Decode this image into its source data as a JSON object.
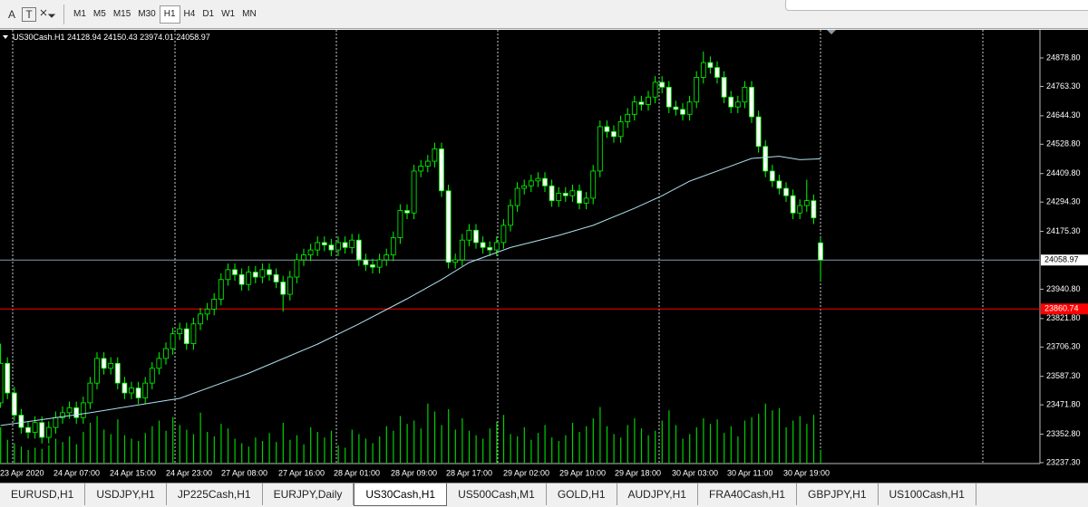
{
  "toolbar": {
    "tools": [
      "A",
      "T"
    ],
    "timeframes": [
      "M1",
      "M5",
      "M15",
      "M30",
      "H1",
      "H4",
      "D1",
      "W1",
      "MN"
    ],
    "active": 4
  },
  "chart_data": {
    "type": "candlestick",
    "title": "US30Cash.H1",
    "x_labels": [
      "23 Apr 2020",
      "24 Apr 07:00",
      "24 Apr 15:00",
      "24 Apr 23:00",
      "27 Apr 08:00",
      "27 Apr 16:00",
      "28 Apr 01:00",
      "28 Apr 09:00",
      "28 Apr 17:00",
      "29 Apr 02:00",
      "29 Apr 10:00",
      "29 Apr 18:00",
      "30 Apr 03:00",
      "30 Apr 11:00",
      "30 Apr 19:00"
    ],
    "ohlc": [
      [
        23480,
        23720,
        23460,
        23640
      ],
      [
        23640,
        23665,
        23495,
        23520
      ],
      [
        23520,
        23545,
        23405,
        23430
      ],
      [
        23430,
        23455,
        23355,
        23380
      ],
      [
        23380,
        23405,
        23335,
        23360
      ],
      [
        23360,
        23425,
        23335,
        23400
      ],
      [
        23400,
        23425,
        23315,
        23340
      ],
      [
        23340,
        23405,
        23315,
        23380
      ],
      [
        23380,
        23445,
        23355,
        23420
      ],
      [
        23420,
        23465,
        23395,
        23440
      ],
      [
        23440,
        23485,
        23415,
        23460
      ],
      [
        23460,
        23485,
        23395,
        23420
      ],
      [
        23420,
        23505,
        23395,
        23480
      ],
      [
        23480,
        23585,
        23455,
        23560
      ],
      [
        23560,
        23685,
        23535,
        23660
      ],
      [
        23660,
        23685,
        23595,
        23620
      ],
      [
        23620,
        23665,
        23595,
        23640
      ],
      [
        23640,
        23665,
        23535,
        23560
      ],
      [
        23560,
        23585,
        23495,
        23520
      ],
      [
        23520,
        23565,
        23495,
        23540
      ],
      [
        23540,
        23565,
        23475,
        23500
      ],
      [
        23500,
        23585,
        23475,
        23560
      ],
      [
        23560,
        23645,
        23535,
        23620
      ],
      [
        23620,
        23685,
        23595,
        23660
      ],
      [
        23660,
        23725,
        23635,
        23700
      ],
      [
        23700,
        23785,
        23675,
        23760
      ],
      [
        23760,
        23805,
        23735,
        23780
      ],
      [
        23780,
        23805,
        23695,
        23720
      ],
      [
        23720,
        23825,
        23695,
        23800
      ],
      [
        23800,
        23865,
        23775,
        23840
      ],
      [
        23840,
        23885,
        23815,
        23860
      ],
      [
        23860,
        23925,
        23835,
        23900
      ],
      [
        23900,
        24005,
        23875,
        23980
      ],
      [
        23980,
        24045,
        23955,
        24020
      ],
      [
        24020,
        24045,
        23975,
        24000
      ],
      [
        24000,
        24025,
        23935,
        23960
      ],
      [
        23960,
        24035,
        23935,
        24010
      ],
      [
        24010,
        24035,
        23965,
        23990
      ],
      [
        23990,
        24045,
        23965,
        24020
      ],
      [
        24020,
        24045,
        23975,
        24000
      ],
      [
        24000,
        24025,
        23945,
        23970
      ],
      [
        23970,
        23995,
        23850,
        23920
      ],
      [
        23920,
        24015,
        23895,
        23990
      ],
      [
        23990,
        24085,
        23965,
        24060
      ],
      [
        24060,
        24105,
        24035,
        24080
      ],
      [
        24080,
        24125,
        24055,
        24100
      ],
      [
        24100,
        24155,
        24075,
        24130
      ],
      [
        24130,
        24155,
        24095,
        24120
      ],
      [
        24120,
        24145,
        24075,
        24100
      ],
      [
        24100,
        24155,
        24075,
        24130
      ],
      [
        24130,
        24155,
        24085,
        24110
      ],
      [
        24110,
        24165,
        24085,
        24140
      ],
      [
        24140,
        24165,
        24035,
        24060
      ],
      [
        24060,
        24085,
        24015,
        24040
      ],
      [
        24040,
        24065,
        24005,
        24030
      ],
      [
        24030,
        24085,
        24005,
        24060
      ],
      [
        24060,
        24105,
        24035,
        24080
      ],
      [
        24080,
        24175,
        24055,
        24150
      ],
      [
        24150,
        24285,
        24125,
        24260
      ],
      [
        24260,
        24285,
        24225,
        24250
      ],
      [
        24250,
        24445,
        24225,
        24420
      ],
      [
        24420,
        24465,
        24395,
        24440
      ],
      [
        24440,
        24485,
        24415,
        24460
      ],
      [
        24460,
        24535,
        24435,
        24510
      ],
      [
        24510,
        24535,
        24315,
        24340
      ],
      [
        24340,
        24365,
        24025,
        24050
      ],
      [
        24050,
        24085,
        24025,
        24060
      ],
      [
        24060,
        24165,
        24035,
        24140
      ],
      [
        24140,
        24205,
        24115,
        24180
      ],
      [
        24180,
        24205,
        24105,
        24130
      ],
      [
        24130,
        24155,
        24085,
        24110
      ],
      [
        24110,
        24135,
        24075,
        24100
      ],
      [
        24100,
        24155,
        24075,
        24130
      ],
      [
        24130,
        24225,
        24105,
        24200
      ],
      [
        24200,
        24305,
        24175,
        24280
      ],
      [
        24280,
        24375,
        24255,
        24350
      ],
      [
        24350,
        24385,
        24325,
        24360
      ],
      [
        24360,
        24405,
        24335,
        24380
      ],
      [
        24380,
        24415,
        24355,
        24390
      ],
      [
        24390,
        24415,
        24335,
        24360
      ],
      [
        24360,
        24385,
        24275,
        24300
      ],
      [
        24300,
        24355,
        24275,
        24330
      ],
      [
        24330,
        24355,
        24295,
        24320
      ],
      [
        24320,
        24365,
        24295,
        24340
      ],
      [
        24340,
        24365,
        24265,
        24290
      ],
      [
        24290,
        24335,
        24265,
        24310
      ],
      [
        24310,
        24445,
        24285,
        24420
      ],
      [
        24420,
        24625,
        24395,
        24600
      ],
      [
        24600,
        24625,
        24555,
        24580
      ],
      [
        24580,
        24605,
        24535,
        24560
      ],
      [
        24560,
        24645,
        24535,
        24620
      ],
      [
        24620,
        24675,
        24595,
        24650
      ],
      [
        24650,
        24725,
        24625,
        24700
      ],
      [
        24700,
        24725,
        24665,
        24690
      ],
      [
        24690,
        24745,
        24665,
        24720
      ],
      [
        24720,
        24805,
        24695,
        24780
      ],
      [
        24780,
        24805,
        24735,
        24760
      ],
      [
        24760,
        24785,
        24655,
        24680
      ],
      [
        24680,
        24705,
        24645,
        24670
      ],
      [
        24670,
        24695,
        24625,
        24650
      ],
      [
        24650,
        24725,
        24625,
        24700
      ],
      [
        24700,
        24825,
        24675,
        24800
      ],
      [
        24800,
        24905,
        24775,
        24860
      ],
      [
        24860,
        24885,
        24815,
        24840
      ],
      [
        24840,
        24865,
        24775,
        24800
      ],
      [
        24800,
        24825,
        24695,
        24720
      ],
      [
        24720,
        24745,
        24655,
        24680
      ],
      [
        24680,
        24725,
        24655,
        24700
      ],
      [
        24700,
        24785,
        24675,
        24760
      ],
      [
        24760,
        24785,
        24615,
        24640
      ],
      [
        24640,
        24665,
        24495,
        24520
      ],
      [
        24520,
        24545,
        24395,
        24420
      ],
      [
        24420,
        24445,
        24355,
        24380
      ],
      [
        24380,
        24405,
        24325,
        24350
      ],
      [
        24350,
        24375,
        24295,
        24320
      ],
      [
        24320,
        24345,
        24225,
        24250
      ],
      [
        24250,
        24305,
        24225,
        24280
      ],
      [
        24280,
        24385,
        24255,
        24300
      ],
      [
        24300,
        24325,
        24205,
        24230
      ],
      [
        24128.94,
        24150.43,
        23974.01,
        24058.97
      ]
    ],
    "volume": [
      3200,
      2100,
      1800,
      1500,
      1200,
      1400,
      1300,
      1600,
      2200,
      1900,
      2400,
      1700,
      2800,
      3600,
      4200,
      3000,
      2600,
      3900,
      2500,
      2200,
      2000,
      2700,
      3300,
      3800,
      2900,
      4100,
      3400,
      3000,
      2600,
      4500,
      2800,
      2400,
      3500,
      3100,
      2200,
      1800,
      1500,
      2300,
      2000,
      2700,
      1900,
      3600,
      2100,
      2500,
      1700,
      3200,
      2800,
      2300,
      2900,
      1600,
      1400,
      3000,
      2600,
      2200,
      1800,
      2400,
      3300,
      2900,
      4200,
      3500,
      3800,
      3100,
      5300,
      4600,
      3400,
      4800,
      3000,
      4000,
      2900,
      2500,
      2200,
      3100,
      3700,
      4300,
      2600,
      2400,
      3200,
      2100,
      2700,
      3400,
      2300,
      2000,
      2500,
      3600,
      2800,
      3300,
      4000,
      5000,
      3300,
      2600,
      2300,
      3400,
      4000,
      3100,
      2500,
      2900,
      3800,
      4700,
      3400,
      2200,
      2600,
      3200,
      4000,
      3500,
      3900,
      2700,
      3300,
      2400,
      3800,
      4100,
      4400,
      5300,
      4700,
      4900,
      3200,
      3800,
      4200,
      3500,
      4300,
      1200
    ],
    "volume_lim": [
      0,
      8000
    ],
    "ma": {
      "x": [
        0,
        13,
        26,
        36,
        46,
        52,
        59,
        64,
        68,
        74,
        81,
        86,
        92,
        96,
        100,
        105,
        109,
        113,
        116,
        119
      ],
      "values": [
        23388,
        23440,
        23498,
        23600,
        23718,
        23800,
        23902,
        23980,
        24049,
        24110,
        24159,
        24200,
        24269,
        24320,
        24379,
        24430,
        24471,
        24480,
        24466,
        24470
      ]
    },
    "ylim": [
      23233.7,
      24992.6
    ],
    "yticks": [
      {
        "value": 24878.8,
        "label": "24878.80"
      },
      {
        "value": 24763.3,
        "label": "24763.30"
      },
      {
        "value": 24644.3,
        "label": "24644.30"
      },
      {
        "value": 24528.8,
        "label": "24528.80"
      },
      {
        "value": 24409.8,
        "label": "24409.80"
      },
      {
        "value": 24294.3,
        "label": "24294.30"
      },
      {
        "value": 24175.3,
        "label": "24175.30"
      },
      {
        "value": 23940.8,
        "label": "23940.80"
      },
      {
        "value": 23821.8,
        "label": "23821.80"
      },
      {
        "value": 23706.3,
        "label": "23706.30"
      },
      {
        "value": 23587.3,
        "label": "23587.30"
      },
      {
        "value": 23471.8,
        "label": "23471.80"
      },
      {
        "value": 23352.8,
        "label": "23352.80"
      },
      {
        "value": 23237.3,
        "label": "23237.30"
      }
    ],
    "level": 23860.74,
    "up_color": "#00ff00",
    "down_color": "#ffffff",
    "ma_color": "#b0e0f0",
    "volume_color": "#00d000",
    "level_color": "#ff0000",
    "bid_color": "#8a9aaa"
  },
  "tabs": {
    "items": [
      "EURUSD,H1",
      "USDJPY,H1",
      "JP225Cash,H1",
      "EURJPY,Daily",
      "US30Cash,H1",
      "US500Cash,M1",
      "GOLD,H1",
      "AUDJPY,H1",
      "FRA40Cash,H1",
      "GBPJPY,H1",
      "US100Cash,H1"
    ],
    "active": 4
  }
}
